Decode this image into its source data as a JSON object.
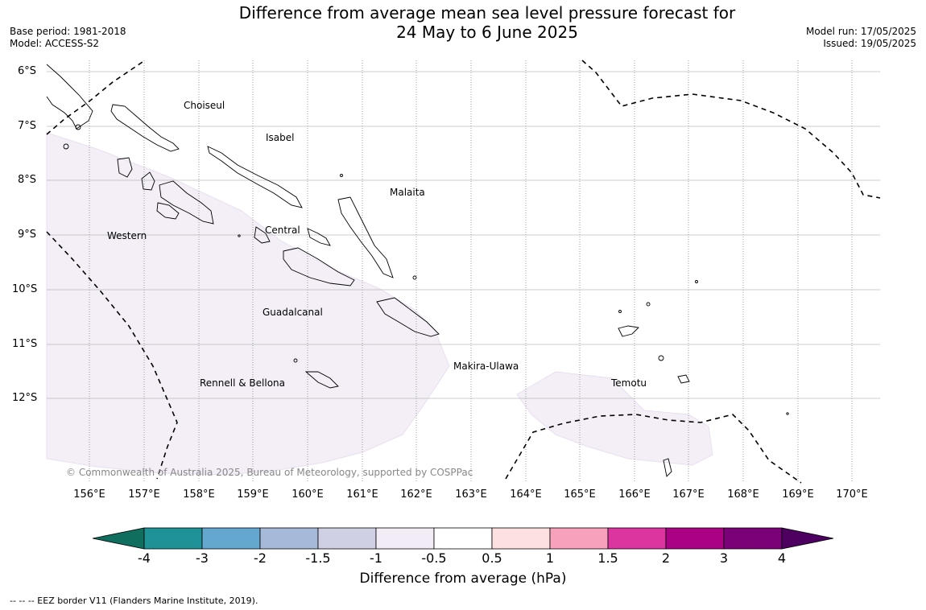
{
  "title": {
    "line1": "Difference from average mean sea level pressure forecast for",
    "line2": "24 May to 6 June 2025"
  },
  "meta_left": {
    "base_period": "Base period: 1981-2018",
    "model": "Model: ACCESS-S2"
  },
  "meta_right": {
    "model_run": "Model run: 17/05/2025",
    "issued": "Issued: 19/05/2025"
  },
  "lat_labels": [
    "6°S",
    "7°S",
    "8°S",
    "9°S",
    "10°S",
    "11°S",
    "12°S"
  ],
  "lon_labels": [
    "156°E",
    "157°E",
    "158°E",
    "159°E",
    "160°E",
    "161°E",
    "162°E",
    "163°E",
    "164°E",
    "165°E",
    "166°E",
    "167°E",
    "168°E",
    "169°E",
    "170°E"
  ],
  "regions": {
    "choiseul": "Choiseul",
    "isabel": "Isabel",
    "malaita": "Malaita",
    "western": "Western",
    "central": "Central",
    "guadalcanal": "Guadalcanal",
    "makira": "Makira-Ulawa",
    "temotu": "Temotu",
    "rennell": "Rennell & Bellona"
  },
  "copyright": "© Commonwealth of Australia 2025, Bureau of Meteorology, supported by COSPPac",
  "colorbar": {
    "ticks": [
      "-4",
      "-3",
      "-2",
      "-1.5",
      "-1",
      "-0.5",
      "0.5",
      "1",
      "1.5",
      "2",
      "3",
      "4"
    ],
    "colors": [
      "#1e9296",
      "#64a8d0",
      "#a6b9d8",
      "#cfd0e4",
      "#f2ecf6",
      "#ffffff",
      "#fde0e0",
      "#f7a1bd",
      "#dd35a0",
      "#ab0285",
      "#7a0177"
    ],
    "under_color": "#0f6e5e",
    "over_color": "#4d0060",
    "label": "Difference from average (hPa)"
  },
  "legend_note": "--  --  -- EEZ border V11 (Flanders Marine Institute, 2019)."
}
